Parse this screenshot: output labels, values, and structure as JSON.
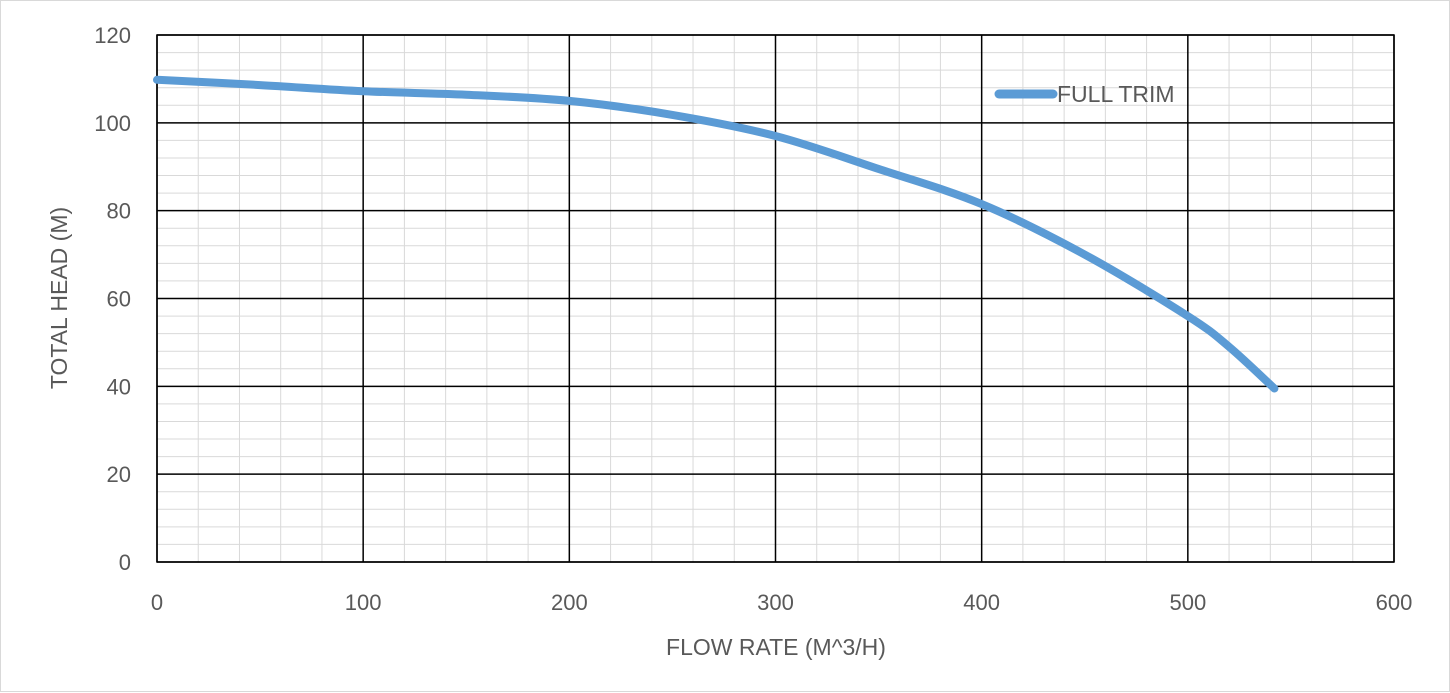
{
  "chart_data": {
    "type": "line",
    "title": "",
    "xlabel": "FLOW RATE (M^3/H)",
    "ylabel": "TOTAL HEAD (M)",
    "xlim": [
      0,
      600
    ],
    "ylim": [
      0,
      120
    ],
    "x_ticks": [
      0,
      100,
      200,
      300,
      400,
      500,
      600
    ],
    "y_ticks": [
      0,
      20,
      40,
      60,
      80,
      100,
      120
    ],
    "grid": {
      "major": true,
      "minor": true,
      "major_color": "#000000",
      "minor_color": "#d9d9d9"
    },
    "legend": {
      "position": "top-right",
      "entries": [
        "FULL TRIM"
      ]
    },
    "series": [
      {
        "name": "FULL TRIM",
        "color": "#5b9bd5",
        "x": [
          0,
          50,
          100,
          150,
          200,
          250,
          300,
          350,
          400,
          450,
          500,
          520,
          542
        ],
        "y": [
          109.8,
          108.6,
          107.2,
          106.4,
          105.0,
          101.8,
          97.0,
          89.5,
          81.5,
          70.0,
          56.0,
          49.0,
          39.5
        ]
      }
    ]
  }
}
